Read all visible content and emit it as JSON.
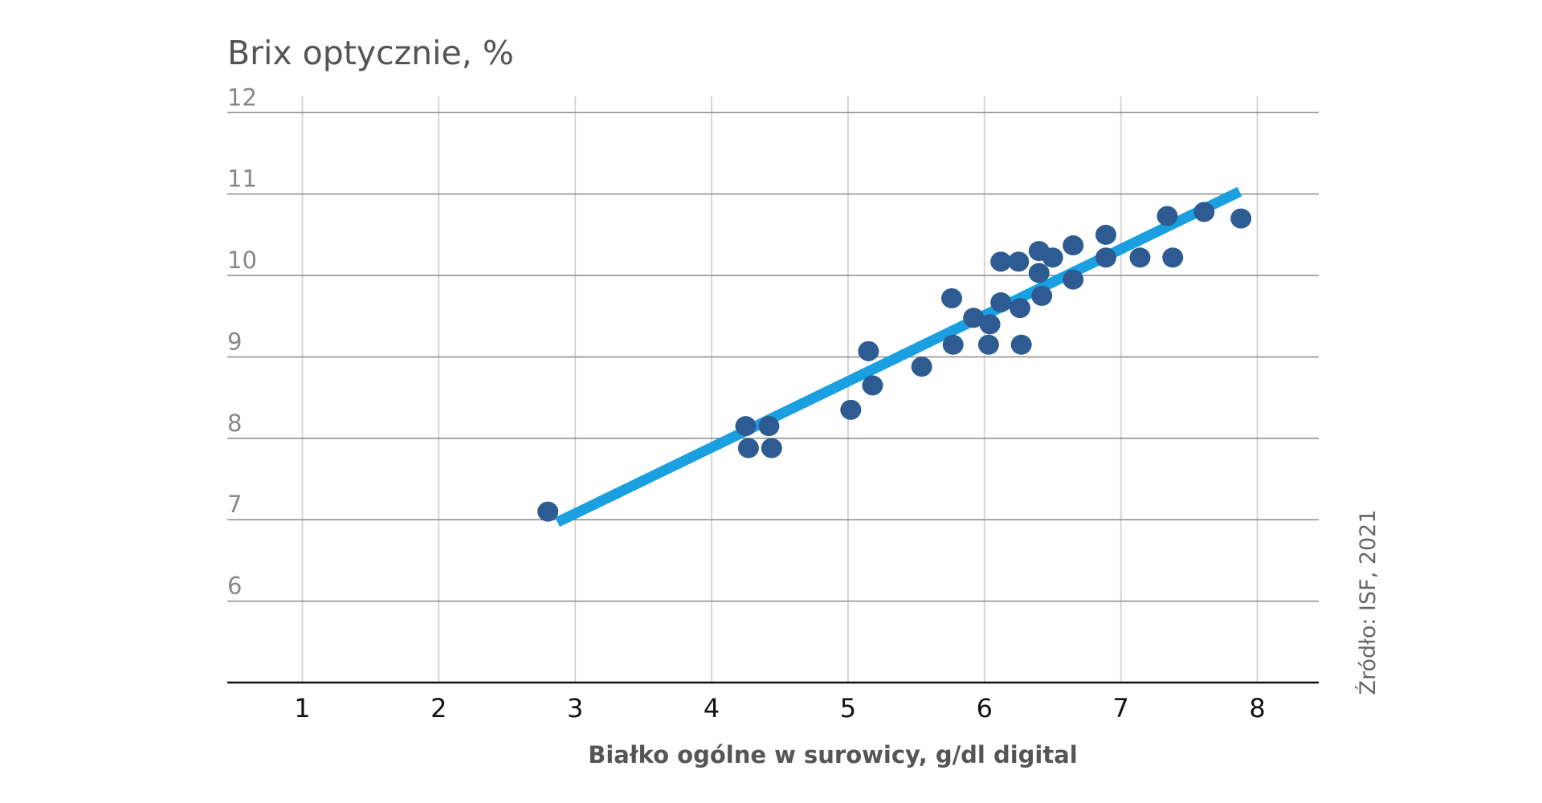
{
  "chart_data": {
    "type": "scatter",
    "ylabel": "Brix optycznie, %",
    "xlabel": "Białko ogólne w surowicy, g/dl digital",
    "source": "Źródło: ISF, 2021",
    "xlim": [
      0.45,
      8.45
    ],
    "ylim": [
      5,
      12.2
    ],
    "x_ticks": [
      1,
      2,
      3,
      4,
      5,
      6,
      7,
      8
    ],
    "y_ticks": [
      6,
      7,
      8,
      9,
      10,
      11,
      12
    ],
    "grid": "both",
    "colors": {
      "points": "#2f5b93",
      "trendline": "#1aa0e0",
      "hgrid": "#8a8a8a",
      "vgrid": "#d6d6d6",
      "xaxis": "#111111"
    },
    "points": [
      {
        "x": 2.8,
        "y": 7.1
      },
      {
        "x": 4.25,
        "y": 8.15
      },
      {
        "x": 4.42,
        "y": 8.15
      },
      {
        "x": 4.27,
        "y": 7.88
      },
      {
        "x": 4.44,
        "y": 7.88
      },
      {
        "x": 5.02,
        "y": 8.35
      },
      {
        "x": 5.15,
        "y": 9.07
      },
      {
        "x": 5.18,
        "y": 8.65
      },
      {
        "x": 5.54,
        "y": 8.88
      },
      {
        "x": 5.76,
        "y": 9.72
      },
      {
        "x": 5.77,
        "y": 9.15
      },
      {
        "x": 5.92,
        "y": 9.48
      },
      {
        "x": 6.03,
        "y": 9.15
      },
      {
        "x": 6.04,
        "y": 9.4
      },
      {
        "x": 6.12,
        "y": 10.17
      },
      {
        "x": 6.12,
        "y": 9.67
      },
      {
        "x": 6.25,
        "y": 10.17
      },
      {
        "x": 6.26,
        "y": 9.6
      },
      {
        "x": 6.27,
        "y": 9.15
      },
      {
        "x": 6.4,
        "y": 10.3
      },
      {
        "x": 6.4,
        "y": 10.03
      },
      {
        "x": 6.42,
        "y": 9.75
      },
      {
        "x": 6.5,
        "y": 10.22
      },
      {
        "x": 6.65,
        "y": 10.37
      },
      {
        "x": 6.65,
        "y": 9.95
      },
      {
        "x": 6.89,
        "y": 10.5
      },
      {
        "x": 6.89,
        "y": 10.22
      },
      {
        "x": 7.14,
        "y": 10.22
      },
      {
        "x": 7.34,
        "y": 10.73
      },
      {
        "x": 7.38,
        "y": 10.22
      },
      {
        "x": 7.61,
        "y": 10.78
      },
      {
        "x": 7.88,
        "y": 10.7
      }
    ],
    "trendline": {
      "x": [
        2.87,
        7.87
      ],
      "y": [
        6.97,
        11.03
      ]
    }
  }
}
